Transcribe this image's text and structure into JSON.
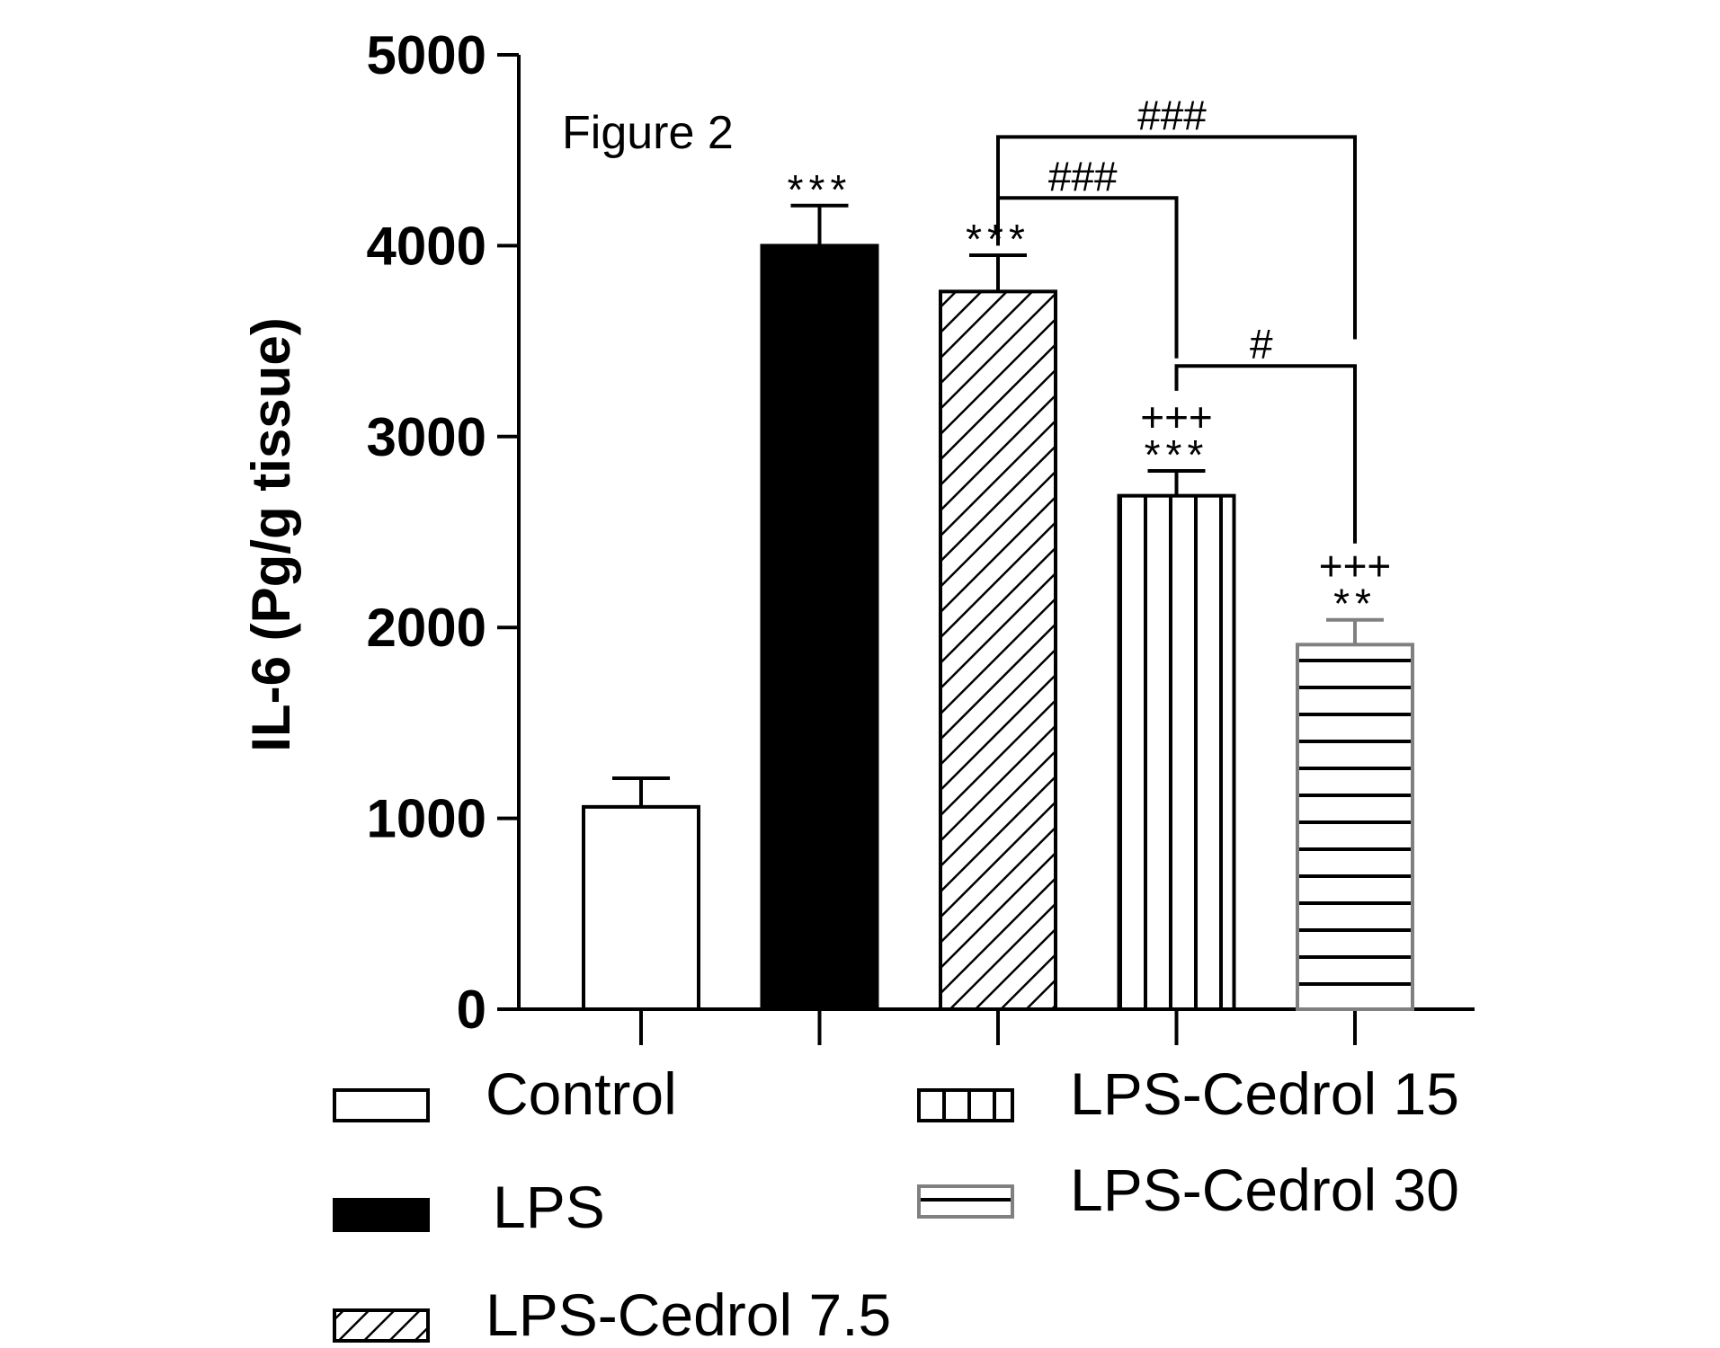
{
  "chart_data": {
    "type": "bar",
    "title": "Figure 2",
    "xlabel": "",
    "ylabel": "IL-6 (Pg/g tissue)",
    "ylim": [
      0,
      5000
    ],
    "yticks": [
      0,
      1000,
      2000,
      3000,
      4000,
      5000
    ],
    "grid": false,
    "categories": [
      "Control",
      "LPS",
      "LPS-Cedrol 7.5",
      "LPS-Cedrol 15",
      "LPS-Cedrol 30"
    ],
    "values": [
      1060,
      4000,
      3760,
      2690,
      1910
    ],
    "errors": [
      150,
      210,
      190,
      130,
      130
    ],
    "patterns": [
      "open",
      "solid",
      "diagonal",
      "vertical",
      "horizontal"
    ],
    "vs_control": [
      "",
      "***",
      "***",
      "***",
      "**"
    ],
    "vs_lps": [
      "",
      "",
      "",
      "+++",
      "+++"
    ],
    "comparisons": [
      {
        "from": "LPS-Cedrol 7.5",
        "to": "LPS-Cedrol 15",
        "label": "###"
      },
      {
        "from": "LPS-Cedrol 7.5",
        "to": "LPS-Cedrol 30",
        "label": "###"
      },
      {
        "from": "LPS-Cedrol 15",
        "to": "LPS-Cedrol 30",
        "label": "#"
      }
    ],
    "legend_position": "bottom",
    "colors": {
      "axis": "#000000",
      "bar_edge": "#000000",
      "bar_edge_light": "#808080",
      "fill": "#ffffff"
    }
  }
}
